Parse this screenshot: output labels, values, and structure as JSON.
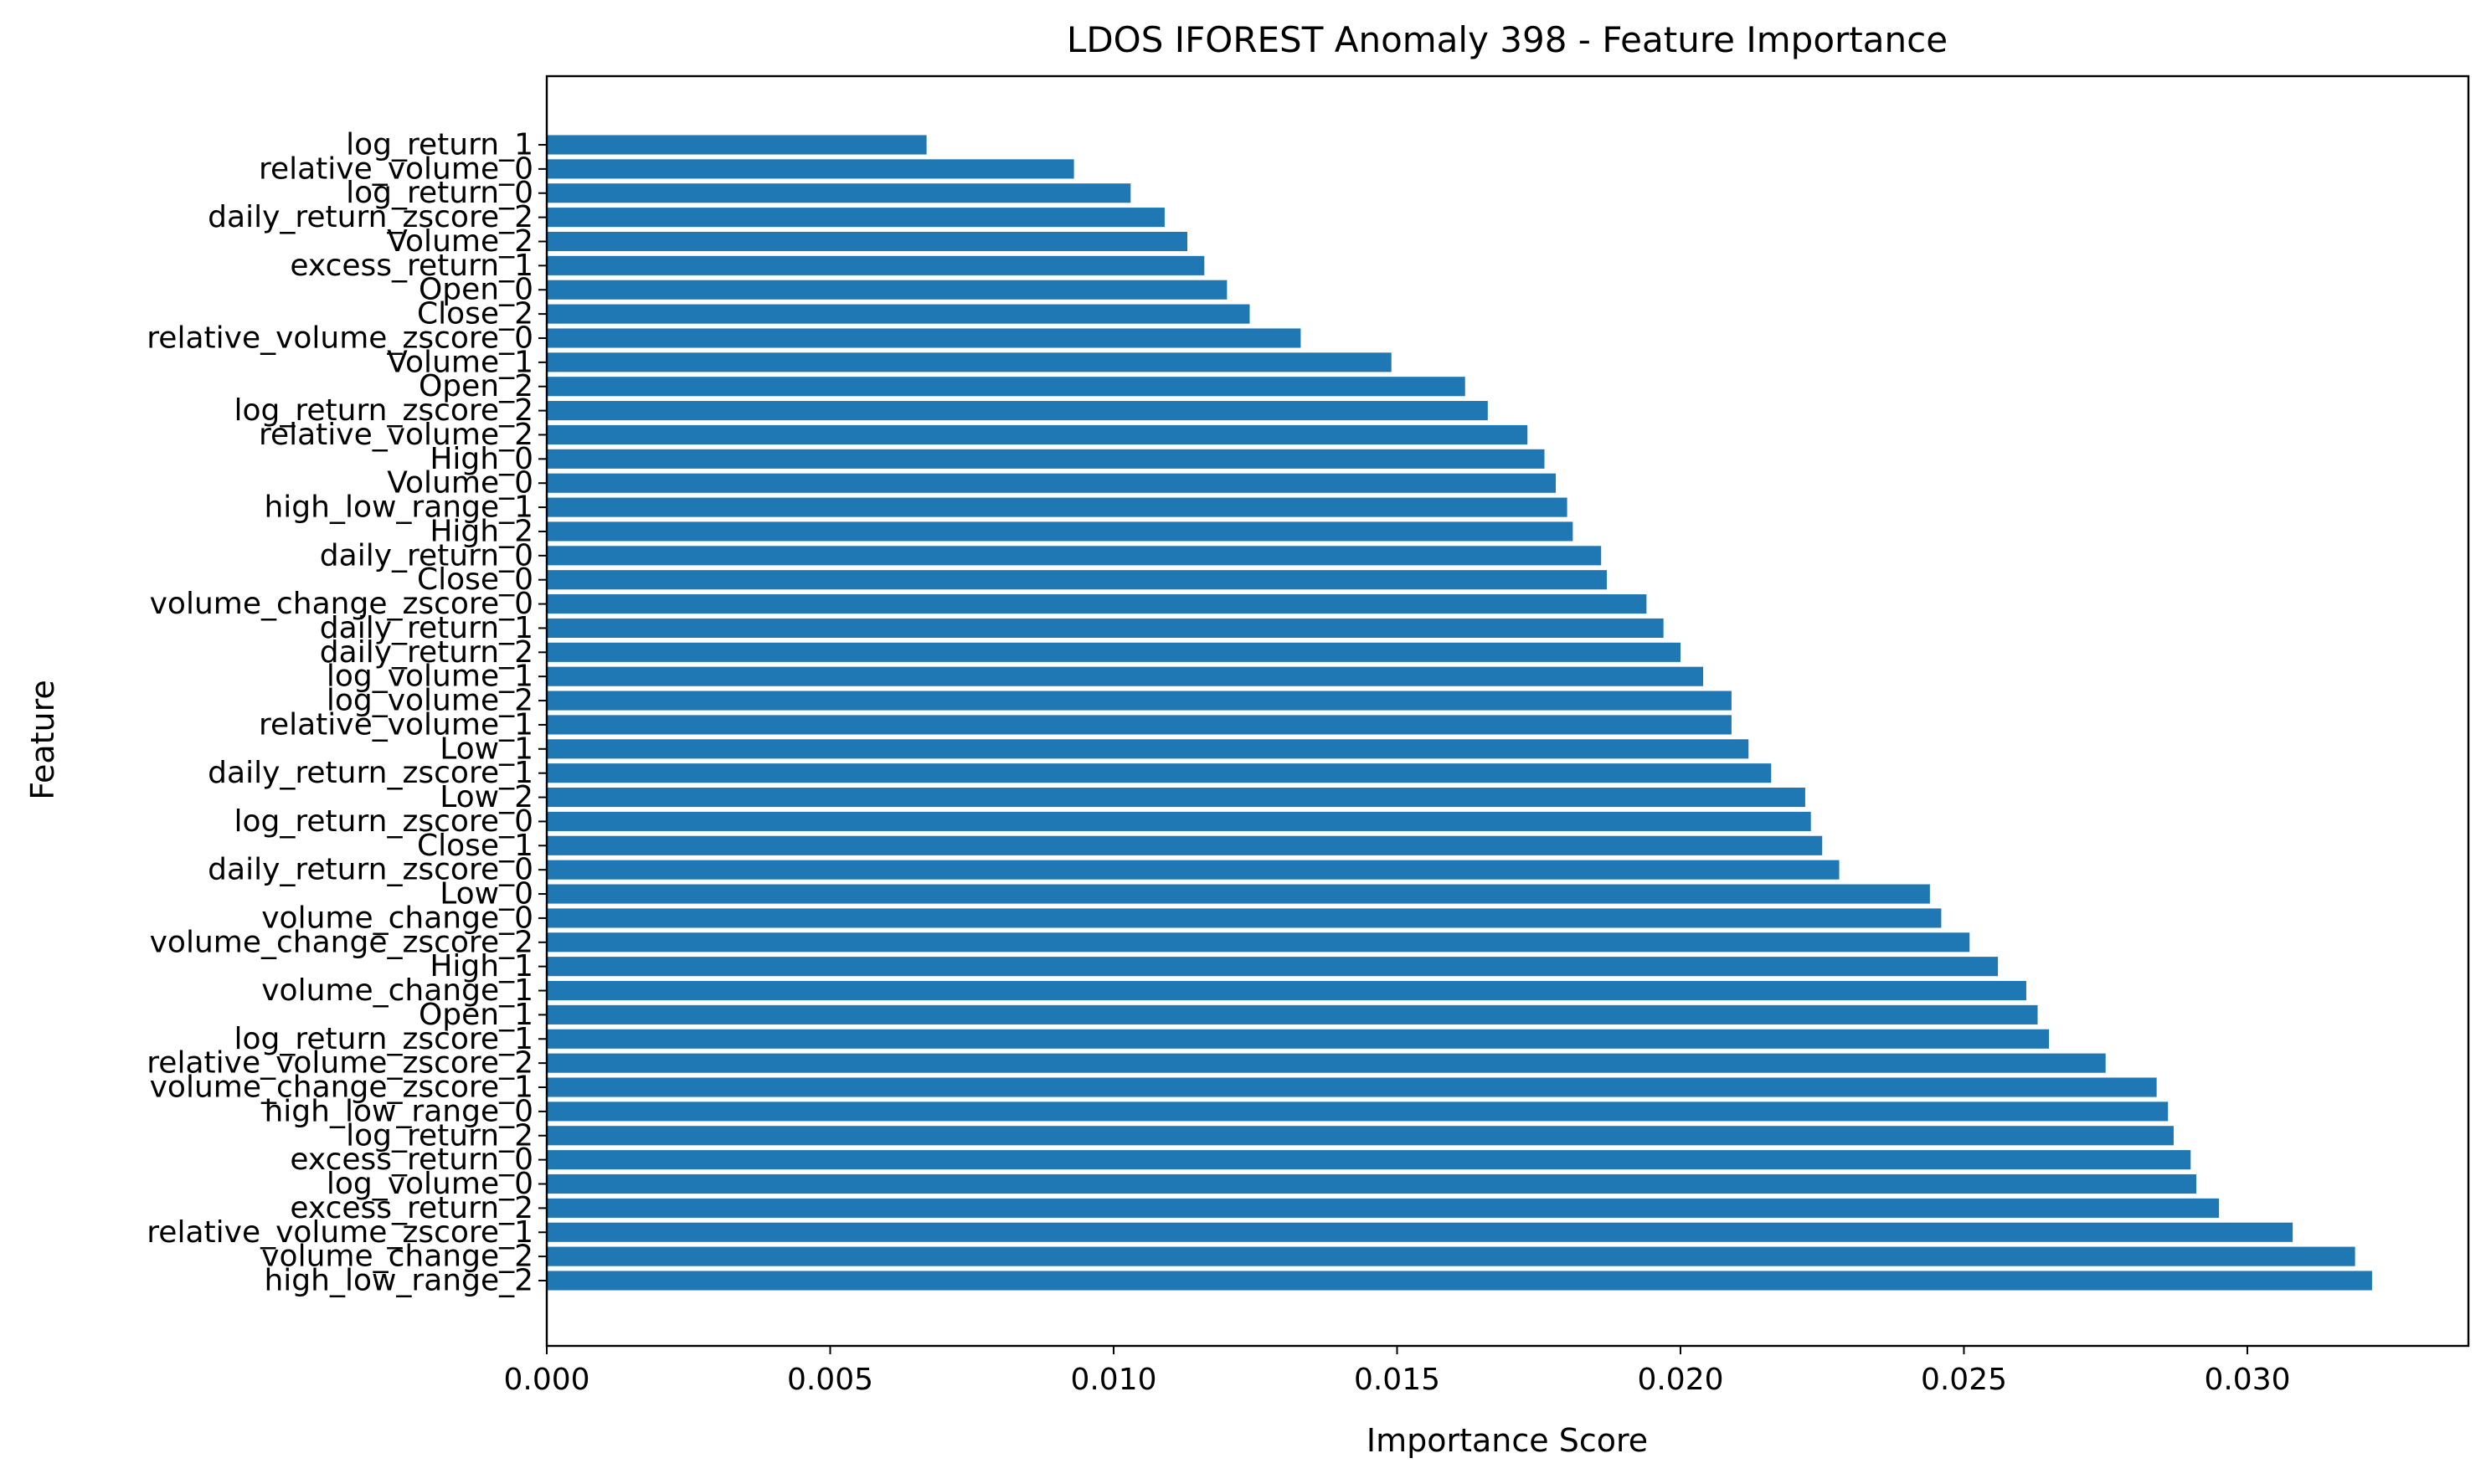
{
  "chart_data": {
    "type": "bar",
    "orientation": "horizontal",
    "title": "LDOS IFOREST Anomaly 398 - Feature Importance",
    "xlabel": "Importance Score",
    "ylabel": "Feature",
    "xlim": [
      0,
      0.0339
    ],
    "xticks": [
      0.0,
      0.005,
      0.01,
      0.015,
      0.02,
      0.025,
      0.03
    ],
    "xtick_labels": [
      "0.000",
      "0.005",
      "0.010",
      "0.015",
      "0.020",
      "0.025",
      "0.030"
    ],
    "grid": false,
    "bar_color": "#1f77b4",
    "categories": [
      "high_low_range_2",
      "volume_change_2",
      "relative_volume_zscore_1",
      "excess_return_2",
      "log_volume_0",
      "excess_return_0",
      "log_return_2",
      "high_low_range_0",
      "volume_change_zscore_1",
      "relative_volume_zscore_2",
      "log_return_zscore_1",
      "Open_1",
      "volume_change_1",
      "High_1",
      "volume_change_zscore_2",
      "volume_change_0",
      "Low_0",
      "daily_return_zscore_0",
      "Close_1",
      "log_return_zscore_0",
      "Low_2",
      "daily_return_zscore_1",
      "Low_1",
      "relative_volume_1",
      "log_volume_2",
      "log_volume_1",
      "daily_return_2",
      "daily_return_1",
      "volume_change_zscore_0",
      "Close_0",
      "daily_return_0",
      "High_2",
      "high_low_range_1",
      "Volume_0",
      "High_0",
      "relative_volume_2",
      "log_return_zscore_2",
      "Open_2",
      "Volume_1",
      "relative_volume_zscore_0",
      "Close_2",
      "Open_0",
      "excess_return_1",
      "Volume_2",
      "daily_return_zscore_2",
      "log_return_0",
      "relative_volume_0",
      "log_return_1"
    ],
    "values": [
      0.0322,
      0.0319,
      0.0308,
      0.0295,
      0.0291,
      0.029,
      0.0287,
      0.0286,
      0.0284,
      0.0275,
      0.0265,
      0.0263,
      0.0261,
      0.0256,
      0.0251,
      0.0246,
      0.0244,
      0.0228,
      0.0225,
      0.0223,
      0.0222,
      0.0216,
      0.0212,
      0.0209,
      0.0209,
      0.0204,
      0.02,
      0.0197,
      0.0194,
      0.0187,
      0.0186,
      0.0181,
      0.018,
      0.0178,
      0.0176,
      0.0173,
      0.0166,
      0.0162,
      0.0149,
      0.0133,
      0.0124,
      0.012,
      0.0116,
      0.0113,
      0.0109,
      0.0103,
      0.0093,
      0.0067
    ]
  }
}
